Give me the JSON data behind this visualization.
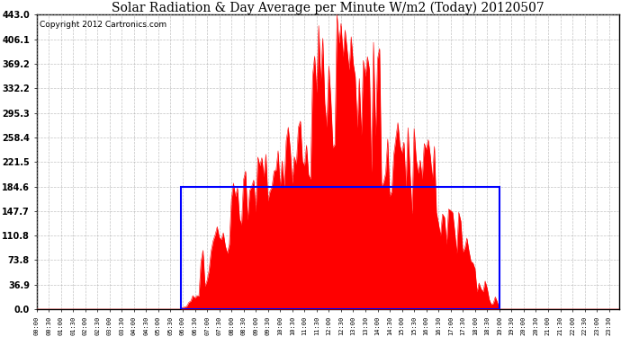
{
  "title": "Solar Radiation & Day Average per Minute W/m2 (Today) 20120507",
  "copyright": "Copyright 2012 Cartronics.com",
  "y_ticks": [
    0.0,
    36.9,
    73.8,
    110.8,
    147.7,
    184.6,
    221.5,
    258.4,
    295.3,
    332.2,
    369.2,
    406.1,
    443.0
  ],
  "y_max": 443.0,
  "day_average": 184.6,
  "sunrise_index": 71,
  "sunset_index": 228,
  "n_points": 288,
  "background_color": "#ffffff",
  "fill_color": "#ff0000",
  "box_color": "#0000ff",
  "grid_color": "#aaaaaa",
  "title_fontsize": 10,
  "copyright_fontsize": 6.5
}
